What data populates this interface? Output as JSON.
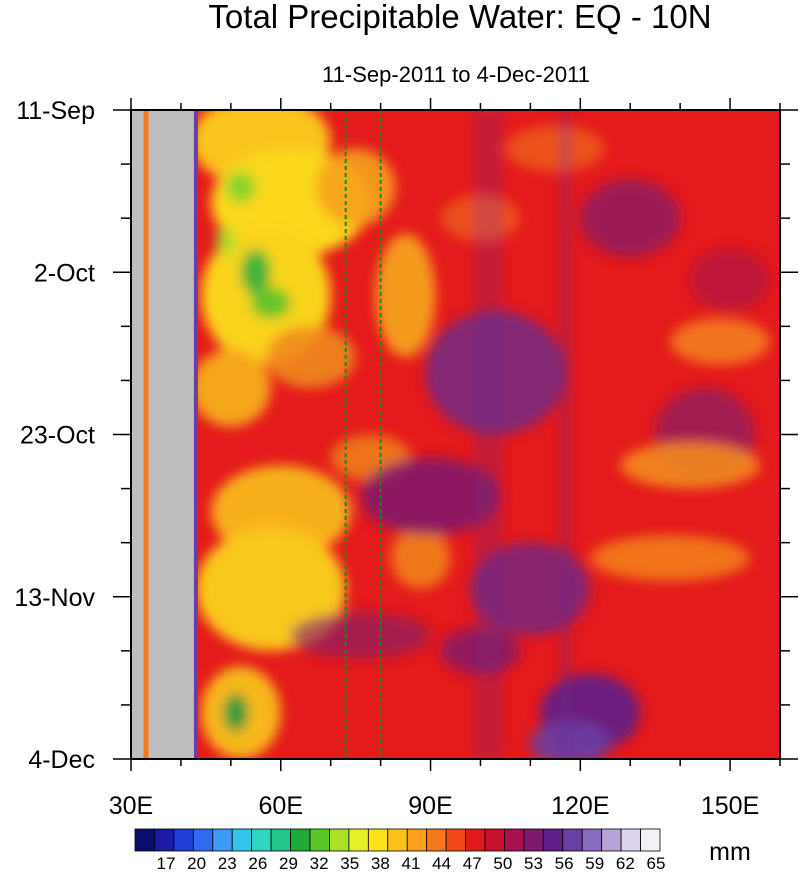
{
  "chart_data": {
    "type": "heatmap",
    "title": "Total Precipitable Water: EQ - 10N",
    "subtitle": "11-Sep-2011 to 4-Dec-2011",
    "xlabel": "",
    "ylabel": "",
    "xlim": [
      30,
      160
    ],
    "ylim_days": [
      0,
      84
    ],
    "x_ticks": [
      {
        "value": 30,
        "label": "30E"
      },
      {
        "value": 60,
        "label": "60E"
      },
      {
        "value": 90,
        "label": "90E"
      },
      {
        "value": 120,
        "label": "120E"
      },
      {
        "value": 150,
        "label": "150E"
      }
    ],
    "y_ticks": [
      {
        "value": 0,
        "label": "11-Sep"
      },
      {
        "value": 21,
        "label": "2-Oct"
      },
      {
        "value": 42,
        "label": "23-Oct"
      },
      {
        "value": 63,
        "label": "13-Nov"
      },
      {
        "value": 84,
        "label": "4-Dec"
      }
    ],
    "reference_lines_lon": [
      73,
      80
    ],
    "land_mask_lon": [
      30,
      43
    ],
    "colorbar": {
      "unit": "mm",
      "levels": [
        17,
        20,
        23,
        26,
        29,
        32,
        35,
        38,
        41,
        44,
        47,
        50,
        53,
        56,
        59,
        62,
        65
      ],
      "colors": [
        "#0d0d70",
        "#1a1aa6",
        "#1f3fd6",
        "#2f6af0",
        "#3f9af5",
        "#33c6e8",
        "#2fd6c0",
        "#22c68a",
        "#1faa3a",
        "#5ac62a",
        "#a8e02a",
        "#e8f02a",
        "#fbe21f",
        "#fcc21c",
        "#fca01c",
        "#f8761c",
        "#f04a1c",
        "#e31a1c",
        "#c8102e",
        "#a5124d",
        "#7e1a6c",
        "#5e2088",
        "#6a3fa4",
        "#8a6cbe",
        "#b6a2d8",
        "#ded4ee",
        "#f4f0f8"
      ]
    }
  }
}
